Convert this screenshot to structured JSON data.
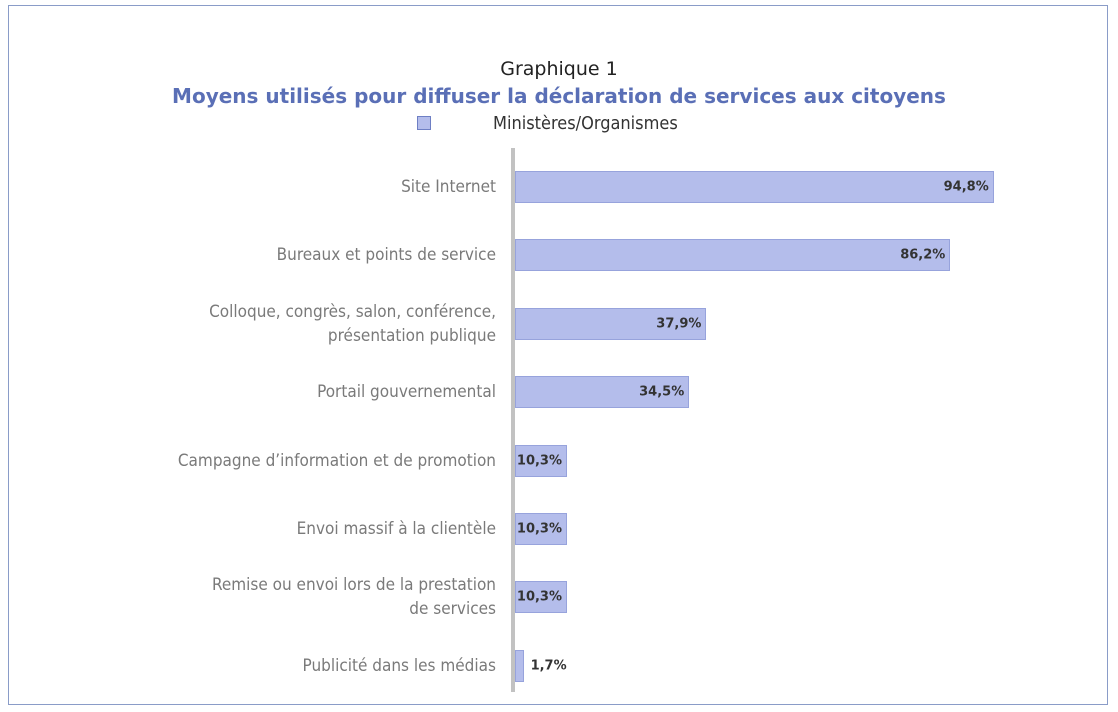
{
  "chart_data": {
    "type": "bar",
    "orientation": "horizontal",
    "title": "Graphique 1",
    "subtitle": "Moyens utilisés pour diffuser la déclaration de services aux citoyens",
    "categories": [
      "Site Internet",
      "Bureaux et points de service",
      "Colloque, congrès, salon, conférence,\nprésentation publique",
      "Portail gouvernemental",
      "Campagne d’information et de promotion",
      "Envoi massif à la clientèle",
      "Remise ou envoi lors de la prestation\nde services",
      "Publicité dans les médias"
    ],
    "series": [
      {
        "name": "Ministères/Organismes",
        "color": "#b4bdeb",
        "values": [
          94.8,
          86.2,
          37.9,
          34.5,
          10.3,
          10.3,
          10.3,
          1.7
        ],
        "value_labels": [
          "94,8%",
          "86,2%",
          "37,9%",
          "34,5%",
          "10,3%",
          "10,3%",
          "10,3%",
          "1,7%"
        ]
      }
    ]
  }
}
